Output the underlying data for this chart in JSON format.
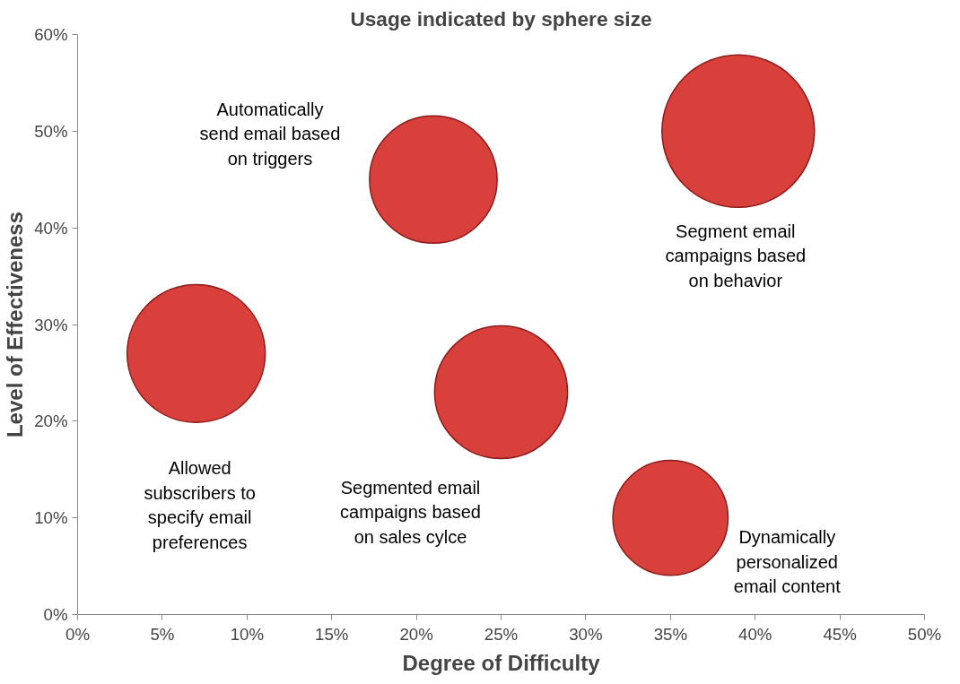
{
  "chart_data": {
    "type": "bubble",
    "title": "Usage indicated by sphere size",
    "xlabel": "Degree of Difficulty",
    "ylabel": "Level of Effectiveness",
    "series": [
      {
        "name": "Automatically\nsend email based\non triggers",
        "color": "#d9403c",
        "x": [
          21
        ],
        "values": [
          45
        ],
        "sizes": [
          0.7
        ]
      },
      {
        "name": "Segment email\ncampaigns based\non behavior",
        "color": "#d9403c",
        "x": [
          39
        ],
        "values": [
          50
        ],
        "sizes": [
          1
        ]
      },
      {
        "name": "Allowed\nsubscribers to\nspecify email\npreferences",
        "color": "#d9403c",
        "x": [
          7
        ],
        "values": [
          27
        ],
        "sizes": [
          0.82
        ]
      },
      {
        "name": "Segmented email\ncampaigns based\non sales cylce",
        "color": "#d9403c",
        "x": [
          25
        ],
        "values": [
          23
        ],
        "sizes": [
          0.76
        ]
      },
      {
        "name": "Dynamically\npersonalized\nemail content",
        "color": "#d9403c",
        "x": [
          35
        ],
        "values": [
          10
        ],
        "sizes": [
          0.57
        ]
      }
    ],
    "xlim": [
      0,
      50
    ],
    "ylim": [
      0,
      60
    ],
    "xticks": [
      {
        "value": 0,
        "label": "0%"
      },
      {
        "value": 5,
        "label": "5%"
      },
      {
        "value": 10,
        "label": "10%"
      },
      {
        "value": 15,
        "label": "15%"
      },
      {
        "value": 20,
        "label": "20%"
      },
      {
        "value": 25,
        "label": "25%"
      },
      {
        "value": 30,
        "label": "30%"
      },
      {
        "value": 35,
        "label": "35%"
      },
      {
        "value": 40,
        "label": "40%"
      },
      {
        "value": 45,
        "label": "45%"
      },
      {
        "value": 50,
        "label": "50%"
      }
    ],
    "yticks": [
      {
        "value": 0,
        "label": "0%"
      },
      {
        "value": 10,
        "label": "10%"
      },
      {
        "value": 20,
        "label": "20%"
      },
      {
        "value": 30,
        "label": "30%"
      },
      {
        "value": 40,
        "label": "40%"
      },
      {
        "value": 50,
        "label": "50%"
      },
      {
        "value": 60,
        "label": "60%"
      }
    ],
    "grid": false,
    "legend": false
  }
}
